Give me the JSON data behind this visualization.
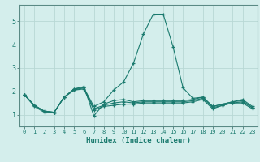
{
  "xlabel": "Humidex (Indice chaleur)",
  "xlim": [
    -0.5,
    23.5
  ],
  "ylim": [
    0.5,
    5.7
  ],
  "xticks": [
    0,
    1,
    2,
    3,
    4,
    5,
    6,
    7,
    8,
    9,
    10,
    11,
    12,
    13,
    14,
    15,
    16,
    17,
    18,
    19,
    20,
    21,
    22,
    23
  ],
  "yticks": [
    1,
    2,
    3,
    4,
    5
  ],
  "background_color": "#d4eeec",
  "grid_color": "#b8d8d5",
  "line_color": "#1a7a6e",
  "spine_color": "#5a8a85",
  "lines": [
    [
      1.85,
      1.35,
      1.1,
      1.1,
      1.75,
      2.1,
      2.15,
      1.35,
      1.55,
      2.05,
      2.4,
      3.2,
      4.45,
      5.3,
      5.3,
      3.9,
      2.15,
      1.7,
      1.75,
      1.35,
      1.45,
      1.55,
      1.65,
      1.35
    ],
    [
      1.85,
      1.4,
      1.15,
      1.1,
      1.75,
      2.1,
      2.2,
      0.95,
      1.45,
      1.6,
      1.65,
      1.55,
      1.6,
      1.6,
      1.6,
      1.6,
      1.6,
      1.65,
      1.75,
      1.35,
      1.45,
      1.55,
      1.6,
      1.3
    ],
    [
      1.85,
      1.4,
      1.15,
      1.1,
      1.75,
      2.05,
      2.15,
      1.25,
      1.4,
      1.5,
      1.55,
      1.5,
      1.55,
      1.55,
      1.55,
      1.55,
      1.55,
      1.6,
      1.7,
      1.3,
      1.4,
      1.5,
      1.55,
      1.3
    ],
    [
      1.85,
      1.4,
      1.15,
      1.1,
      1.75,
      2.05,
      2.1,
      1.2,
      1.35,
      1.4,
      1.45,
      1.45,
      1.5,
      1.5,
      1.5,
      1.5,
      1.5,
      1.55,
      1.65,
      1.25,
      1.4,
      1.5,
      1.5,
      1.25
    ]
  ]
}
